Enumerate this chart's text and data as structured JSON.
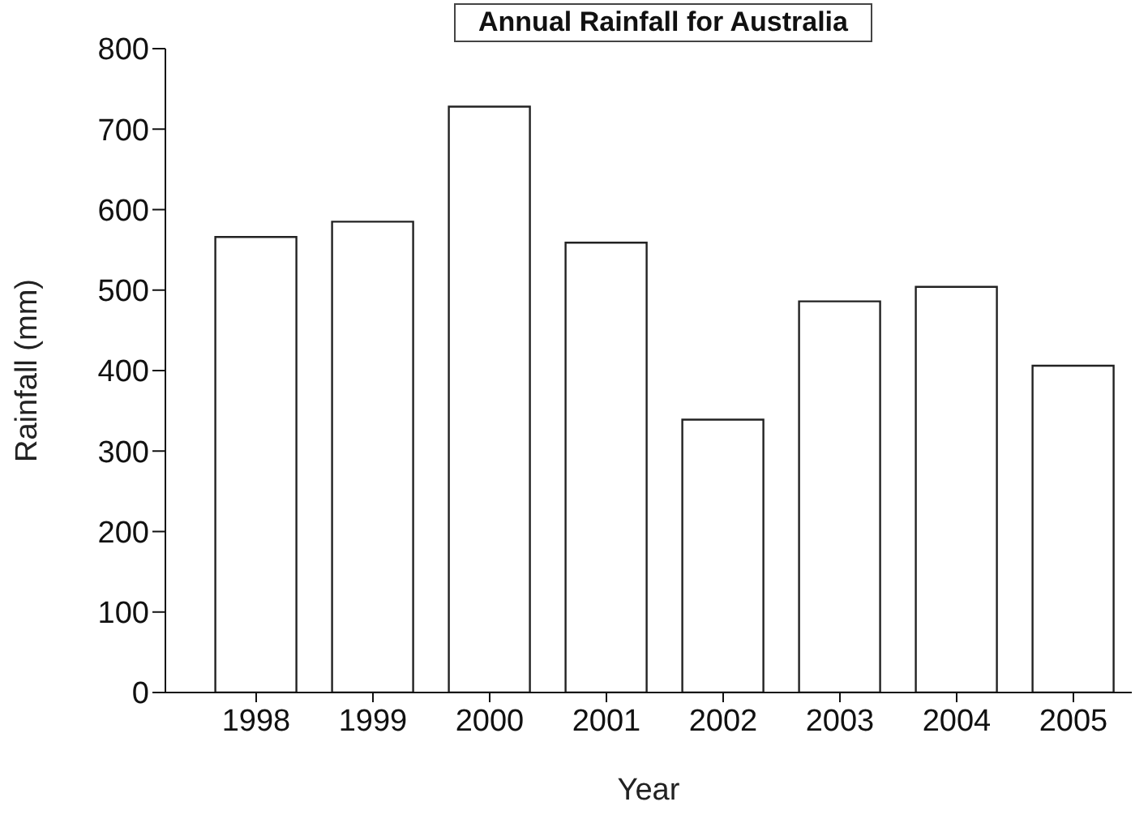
{
  "chart_data": {
    "type": "bar",
    "title": "Annual Rainfall for Australia",
    "xlabel": "Year",
    "ylabel": "Rainfall (mm)",
    "categories": [
      "1998",
      "1999",
      "2000",
      "2001",
      "2002",
      "2003",
      "2004",
      "2005"
    ],
    "values": [
      566,
      585,
      728,
      559,
      339,
      486,
      504,
      406
    ],
    "color": "#ffffff",
    "ylim": [
      0,
      800
    ],
    "yticks": [
      0,
      100,
      200,
      300,
      400,
      500,
      600,
      700,
      800
    ],
    "grid": false,
    "legend": false
  }
}
